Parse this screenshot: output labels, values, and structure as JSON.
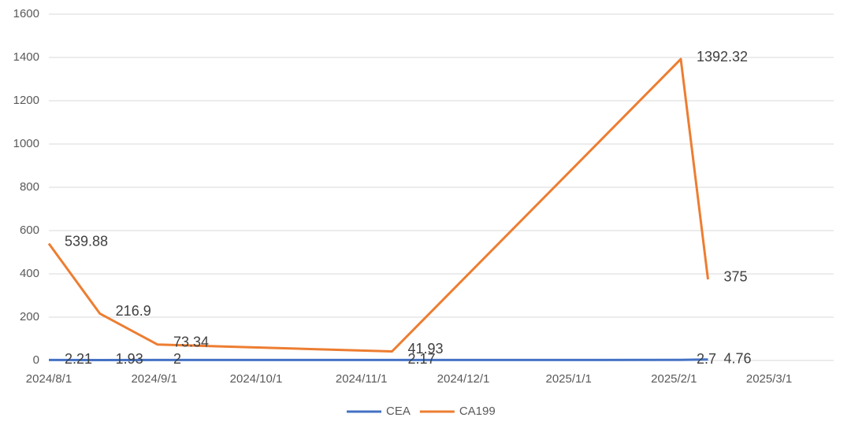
{
  "chart_data": {
    "type": "line",
    "x": [
      "2024-08-01",
      "2024-08-16",
      "2024-09-02",
      "2024-11-10",
      "2025-02-03",
      "2025-02-11"
    ],
    "series": [
      {
        "name": "CEA",
        "color": "#4472c4",
        "values": [
          2.21,
          1.93,
          2,
          2.17,
          2.7,
          4.76
        ]
      },
      {
        "name": "CA199",
        "color": "#ed7d31",
        "values": [
          539.88,
          216.9,
          73.34,
          41.93,
          1392.32,
          375
        ]
      }
    ],
    "xlim": [
      "2024-08-01",
      "2025-03-20"
    ],
    "xticks": [
      {
        "value": "2024-08-01",
        "label": "2024/8/1"
      },
      {
        "value": "2024-09-01",
        "label": "2024/9/1"
      },
      {
        "value": "2024-10-01",
        "label": "2024/10/1"
      },
      {
        "value": "2024-11-01",
        "label": "2024/11/1"
      },
      {
        "value": "2024-12-01",
        "label": "2024/12/1"
      },
      {
        "value": "2025-01-01",
        "label": "2025/1/1"
      },
      {
        "value": "2025-02-01",
        "label": "2025/2/1"
      },
      {
        "value": "2025-03-01",
        "label": "2025/3/1"
      }
    ],
    "ylim": [
      0,
      1600
    ],
    "yticks": [
      0,
      200,
      400,
      600,
      800,
      1000,
      1200,
      1400,
      1600
    ],
    "grid": true,
    "legend": "bottom"
  }
}
